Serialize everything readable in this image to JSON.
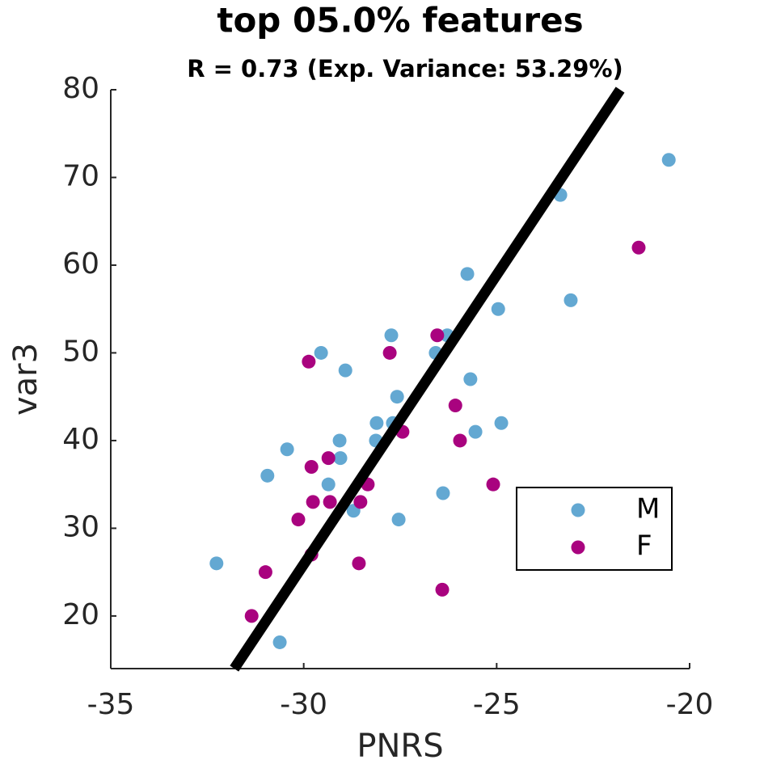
{
  "chart_data": {
    "type": "scatter",
    "title": "top 05.0% features",
    "subtitle": "R = 0.73 (Exp. Variance: 53.29%)",
    "x_label": "PNRS",
    "y_label": "var3",
    "xlim": [
      -35,
      -20
    ],
    "ylim": [
      14,
      80
    ],
    "xticks": [
      -35,
      -30,
      -25,
      -20
    ],
    "yticks": [
      20,
      30,
      40,
      50,
      60,
      70,
      80
    ],
    "legend_position": "lower right",
    "series": [
      {
        "name": "M",
        "color": "#63a8d2",
        "x": [
          -32.26,
          -30.94,
          -30.62,
          -30.43,
          -29.55,
          -29.36,
          -29.07,
          -29.05,
          -28.92,
          -28.71,
          -28.13,
          -28.11,
          -27.73,
          -27.69,
          -27.58,
          -27.54,
          -26.58,
          -26.39,
          -26.28,
          -25.76,
          -25.68,
          -25.55,
          -24.96,
          -24.88,
          -23.35,
          -23.08,
          -20.54
        ],
        "values": [
          26,
          36,
          17,
          39,
          50,
          35,
          40,
          38,
          48,
          32,
          40,
          42,
          52,
          42,
          45,
          31,
          50,
          34,
          52,
          59,
          47,
          41,
          55,
          42,
          68,
          56,
          72
        ]
      },
      {
        "name": "F",
        "color": "#a9037f",
        "x": [
          -31.35,
          -30.99,
          -30.14,
          -29.87,
          -29.8,
          -29.76,
          -29.8,
          -29.36,
          -29.32,
          -28.57,
          -28.53,
          -28.34,
          -27.77,
          -27.44,
          -26.54,
          -26.41,
          -26.07,
          -25.95,
          -25.09,
          -21.32
        ],
        "values": [
          20,
          25,
          31,
          49,
          37,
          33,
          27,
          38,
          33,
          26,
          33,
          35,
          50,
          41,
          52,
          23,
          44,
          40,
          35,
          62
        ]
      }
    ],
    "fit_line": {
      "color": "#000000",
      "x": [
        -31.8,
        -21.8
      ],
      "values": [
        14,
        80
      ]
    }
  }
}
